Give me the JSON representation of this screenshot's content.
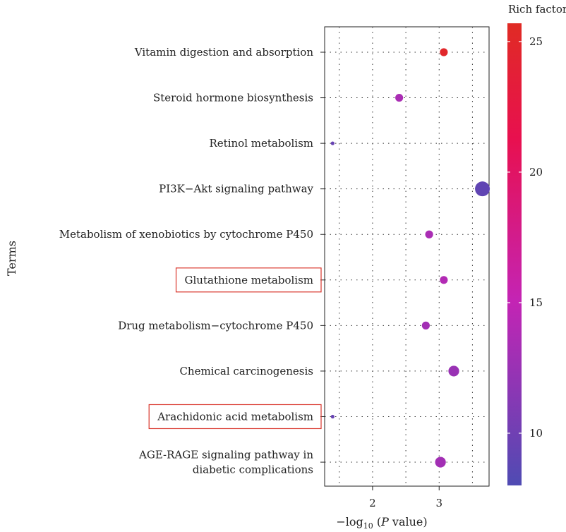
{
  "chart_data": {
    "type": "scatter",
    "ylabel": "Terms",
    "xlabel_parts": {
      "prefix": "−log",
      "sub": "10",
      "open": " (",
      "p": "P",
      "rest": " value)"
    },
    "xlim": [
      1.28,
      3.75
    ],
    "xticks": [
      "2",
      "3"
    ],
    "xtick_values": [
      2,
      3
    ],
    "xgrid": [
      1.5,
      2,
      2.5,
      3,
      3.5
    ],
    "grid": true,
    "terms": [
      {
        "label": "Vitamin digestion and absorption",
        "x": 3.07,
        "rich_factor": 25.0,
        "size": "medium",
        "highlighted": false
      },
      {
        "label": "Steroid hormone biosynthesis",
        "x": 2.4,
        "rich_factor": 13.5,
        "size": "medium",
        "highlighted": false
      },
      {
        "label": "Retinol metabolism",
        "x": 1.4,
        "rich_factor": 9.5,
        "size": "tiny",
        "highlighted": false
      },
      {
        "label": "PI3K−Akt signaling pathway",
        "x": 3.65,
        "rich_factor": 9.0,
        "size": "large",
        "highlighted": false
      },
      {
        "label": "Metabolism of xenobiotics by cytochrome P450",
        "x": 2.85,
        "rich_factor": 13.5,
        "size": "medium",
        "highlighted": false
      },
      {
        "label": "Glutathione metabolism",
        "x": 3.07,
        "rich_factor": 14.0,
        "size": "medium",
        "highlighted": true
      },
      {
        "label": "Drug metabolism−cytochrome P450",
        "x": 2.8,
        "rich_factor": 13.0,
        "size": "medium",
        "highlighted": false
      },
      {
        "label": "Chemical carcinogenesis",
        "x": 3.22,
        "rich_factor": 12.5,
        "size": "medium-large",
        "highlighted": false
      },
      {
        "label": "Arachidonic acid metabolism",
        "x": 1.4,
        "rich_factor": 9.5,
        "size": "tiny",
        "highlighted": true
      },
      {
        "label": "AGE-RAGE signaling pathway in diabetic complications",
        "label_lines": [
          "AGE-RAGE signaling pathway in",
          "diabetic complications"
        ],
        "x": 3.02,
        "rich_factor": 13.0,
        "size": "medium-large",
        "highlighted": false
      }
    ],
    "colorbar": {
      "title": "Rich factor",
      "ticks": [
        "10",
        "15",
        "20",
        "25"
      ],
      "tick_values": [
        10,
        15,
        20,
        25
      ],
      "range": [
        8.0,
        25.7
      ],
      "colors": [
        "#4f4bb3",
        "#c424b4",
        "#e8104f",
        "#e02b24"
      ]
    },
    "highlight_color": "#d9352b"
  }
}
